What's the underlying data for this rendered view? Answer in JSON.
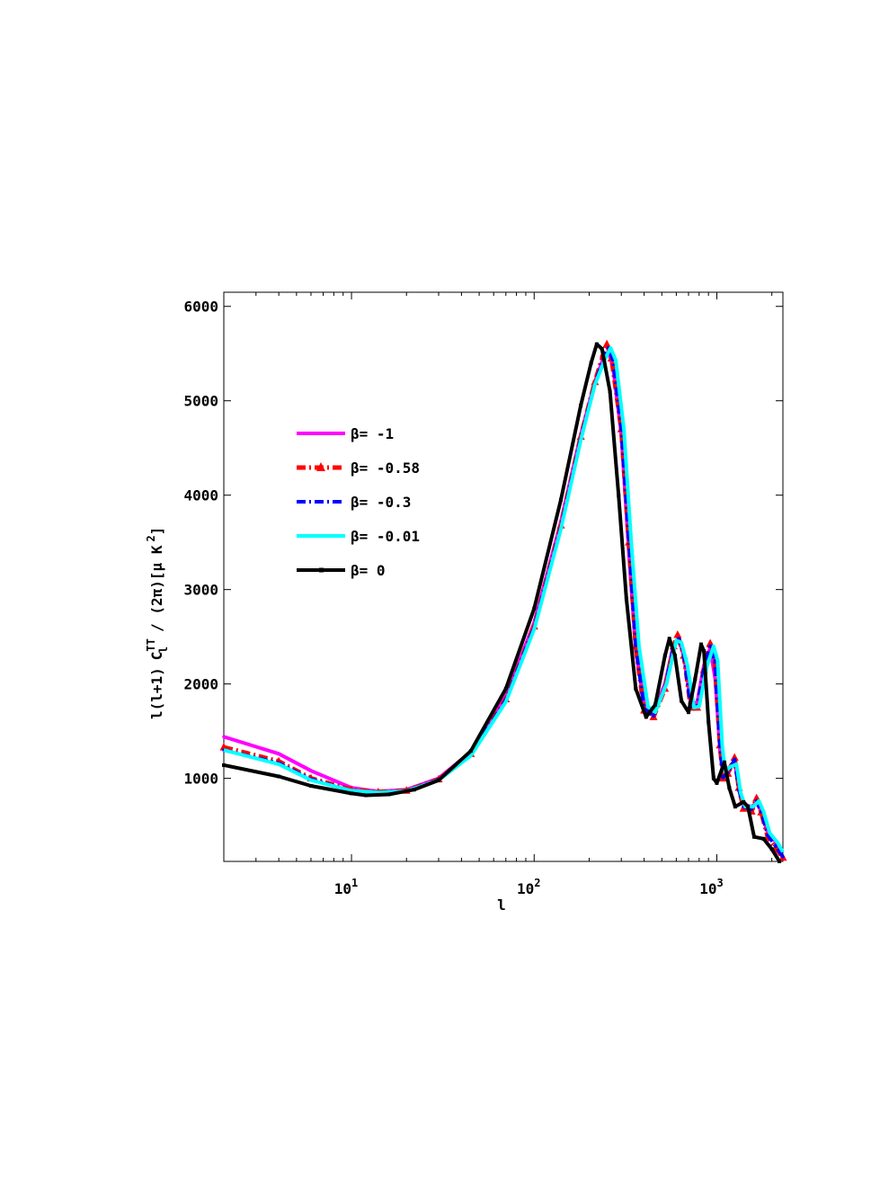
{
  "chart_data": {
    "type": "line",
    "title": "",
    "xlabel": "l",
    "ylabel": {
      "prefix": "l(l+1)",
      "c": "C",
      "sup": "TT",
      "sub": "l",
      "suffix": "/ (2π)[μ K",
      "power": "2",
      "close": "]"
    },
    "xscale": "log",
    "xlim": [
      2,
      2300
    ],
    "ylim": [
      120,
      6150
    ],
    "grid": false,
    "legend_position": "upper-left",
    "x_ticks": [
      {
        "base": "10",
        "exp": "1",
        "value": 10
      },
      {
        "base": "10",
        "exp": "2",
        "value": 100
      },
      {
        "base": "10",
        "exp": "3",
        "value": 1000
      }
    ],
    "y_ticks": [
      "1000",
      "2000",
      "3000",
      "4000",
      "5000",
      "6000"
    ],
    "series": [
      {
        "name": "β= -1",
        "color": "#ff00ff",
        "style": "solid",
        "marker": "dot",
        "points": [
          [
            2,
            1440
          ],
          [
            4,
            1260
          ],
          [
            6,
            1080
          ],
          [
            10,
            900
          ],
          [
            14,
            860
          ],
          [
            20,
            880
          ],
          [
            30,
            1000
          ],
          [
            45,
            1280
          ],
          [
            70,
            1870
          ],
          [
            100,
            2650
          ],
          [
            140,
            3720
          ],
          [
            180,
            4640
          ],
          [
            215,
            5200
          ],
          [
            240,
            5460
          ],
          [
            255,
            5520
          ],
          [
            270,
            5360
          ],
          [
            300,
            4650
          ],
          [
            330,
            3400
          ],
          [
            360,
            2350
          ],
          [
            400,
            1800
          ],
          [
            450,
            1700
          ],
          [
            520,
            2000
          ],
          [
            580,
            2420
          ],
          [
            620,
            2470
          ],
          [
            660,
            2300
          ],
          [
            720,
            1800
          ],
          [
            780,
            1800
          ],
          [
            850,
            2200
          ],
          [
            920,
            2380
          ],
          [
            980,
            2050
          ],
          [
            1040,
            1300
          ],
          [
            1080,
            1050
          ],
          [
            1150,
            1100
          ],
          [
            1250,
            1180
          ],
          [
            1320,
            900
          ],
          [
            1400,
            720
          ],
          [
            1550,
            700
          ],
          [
            1650,
            740
          ],
          [
            1750,
            650
          ],
          [
            1900,
            420
          ],
          [
            2100,
            330
          ],
          [
            2300,
            150
          ]
        ]
      },
      {
        "name": "β= -0.58",
        "color": "#ff0000",
        "style": "dashdot",
        "marker": "triangle",
        "points": [
          [
            2,
            1330
          ],
          [
            4,
            1180
          ],
          [
            6,
            1000
          ],
          [
            10,
            880
          ],
          [
            14,
            855
          ],
          [
            20,
            870
          ],
          [
            30,
            990
          ],
          [
            45,
            1260
          ],
          [
            70,
            1840
          ],
          [
            100,
            2610
          ],
          [
            140,
            3680
          ],
          [
            180,
            4620
          ],
          [
            215,
            5200
          ],
          [
            240,
            5500
          ],
          [
            250,
            5600
          ],
          [
            265,
            5450
          ],
          [
            300,
            4700
          ],
          [
            330,
            3500
          ],
          [
            360,
            2400
          ],
          [
            400,
            1720
          ],
          [
            450,
            1650
          ],
          [
            520,
            1950
          ],
          [
            580,
            2400
          ],
          [
            610,
            2520
          ],
          [
            660,
            2300
          ],
          [
            720,
            1750
          ],
          [
            780,
            1750
          ],
          [
            850,
            2150
          ],
          [
            920,
            2430
          ],
          [
            970,
            2300
          ],
          [
            1040,
            1350
          ],
          [
            1080,
            1000
          ],
          [
            1150,
            1050
          ],
          [
            1250,
            1220
          ],
          [
            1320,
            900
          ],
          [
            1400,
            680
          ],
          [
            1550,
            650
          ],
          [
            1650,
            790
          ],
          [
            1750,
            640
          ],
          [
            1900,
            380
          ],
          [
            2100,
            260
          ],
          [
            2300,
            160
          ]
        ]
      },
      {
        "name": "β= -0.3",
        "color": "#0000ff",
        "style": "dashdot",
        "marker": "dot",
        "points": [
          [
            2,
            1300
          ],
          [
            4,
            1160
          ],
          [
            6,
            990
          ],
          [
            10,
            870
          ],
          [
            14,
            850
          ],
          [
            20,
            868
          ],
          [
            30,
            985
          ],
          [
            45,
            1250
          ],
          [
            70,
            1830
          ],
          [
            100,
            2600
          ],
          [
            140,
            3660
          ],
          [
            180,
            4600
          ],
          [
            215,
            5180
          ],
          [
            240,
            5450
          ],
          [
            255,
            5560
          ],
          [
            270,
            5430
          ],
          [
            300,
            4720
          ],
          [
            330,
            3530
          ],
          [
            360,
            2420
          ],
          [
            400,
            1740
          ],
          [
            450,
            1660
          ],
          [
            520,
            1960
          ],
          [
            580,
            2390
          ],
          [
            620,
            2480
          ],
          [
            660,
            2300
          ],
          [
            720,
            1760
          ],
          [
            780,
            1760
          ],
          [
            850,
            2160
          ],
          [
            920,
            2400
          ],
          [
            975,
            2250
          ],
          [
            1040,
            1340
          ],
          [
            1080,
            1010
          ],
          [
            1150,
            1060
          ],
          [
            1250,
            1200
          ],
          [
            1320,
            880
          ],
          [
            1400,
            700
          ],
          [
            1550,
            670
          ],
          [
            1650,
            760
          ],
          [
            1750,
            650
          ],
          [
            1900,
            400
          ],
          [
            2100,
            280
          ],
          [
            2300,
            170
          ]
        ]
      },
      {
        "name": "β= -0.01",
        "color": "#00ffff",
        "style": "solid",
        "marker": "none",
        "points": [
          [
            2,
            1300
          ],
          [
            4,
            1150
          ],
          [
            6,
            980
          ],
          [
            10,
            870
          ],
          [
            14,
            850
          ],
          [
            20,
            865
          ],
          [
            30,
            980
          ],
          [
            45,
            1240
          ],
          [
            70,
            1810
          ],
          [
            100,
            2580
          ],
          [
            140,
            3640
          ],
          [
            180,
            4580
          ],
          [
            215,
            5170
          ],
          [
            245,
            5450
          ],
          [
            262,
            5560
          ],
          [
            280,
            5430
          ],
          [
            310,
            4700
          ],
          [
            340,
            3500
          ],
          [
            375,
            2400
          ],
          [
            420,
            1760
          ],
          [
            460,
            1700
          ],
          [
            530,
            2000
          ],
          [
            600,
            2460
          ],
          [
            640,
            2440
          ],
          [
            690,
            2200
          ],
          [
            750,
            1750
          ],
          [
            800,
            1760
          ],
          [
            880,
            2180
          ],
          [
            960,
            2400
          ],
          [
            1010,
            2250
          ],
          [
            1070,
            1350
          ],
          [
            1110,
            1070
          ],
          [
            1180,
            1120
          ],
          [
            1280,
            1150
          ],
          [
            1350,
            850
          ],
          [
            1430,
            700
          ],
          [
            1580,
            700
          ],
          [
            1700,
            760
          ],
          [
            1800,
            650
          ],
          [
            1950,
            420
          ],
          [
            2150,
            320
          ],
          [
            2300,
            220
          ]
        ]
      },
      {
        "name": "β= 0",
        "color": "#000000",
        "style": "solid",
        "marker": "square",
        "points": [
          [
            2,
            1140
          ],
          [
            4,
            1020
          ],
          [
            6,
            920
          ],
          [
            10,
            840
          ],
          [
            12,
            820
          ],
          [
            16,
            830
          ],
          [
            22,
            880
          ],
          [
            30,
            980
          ],
          [
            45,
            1290
          ],
          [
            70,
            1950
          ],
          [
            100,
            2800
          ],
          [
            140,
            3950
          ],
          [
            180,
            4950
          ],
          [
            205,
            5400
          ],
          [
            220,
            5600
          ],
          [
            235,
            5550
          ],
          [
            260,
            5100
          ],
          [
            290,
            4000
          ],
          [
            320,
            2900
          ],
          [
            360,
            1950
          ],
          [
            410,
            1650
          ],
          [
            460,
            1780
          ],
          [
            520,
            2300
          ],
          [
            550,
            2480
          ],
          [
            590,
            2300
          ],
          [
            640,
            1820
          ],
          [
            700,
            1700
          ],
          [
            760,
            2050
          ],
          [
            820,
            2420
          ],
          [
            850,
            2350
          ],
          [
            900,
            1600
          ],
          [
            960,
            1000
          ],
          [
            1000,
            950
          ],
          [
            1100,
            1170
          ],
          [
            1170,
            900
          ],
          [
            1260,
            700
          ],
          [
            1400,
            750
          ],
          [
            1480,
            700
          ],
          [
            1600,
            380
          ],
          [
            1800,
            360
          ],
          [
            2000,
            250
          ],
          [
            2200,
            120
          ]
        ]
      }
    ]
  }
}
